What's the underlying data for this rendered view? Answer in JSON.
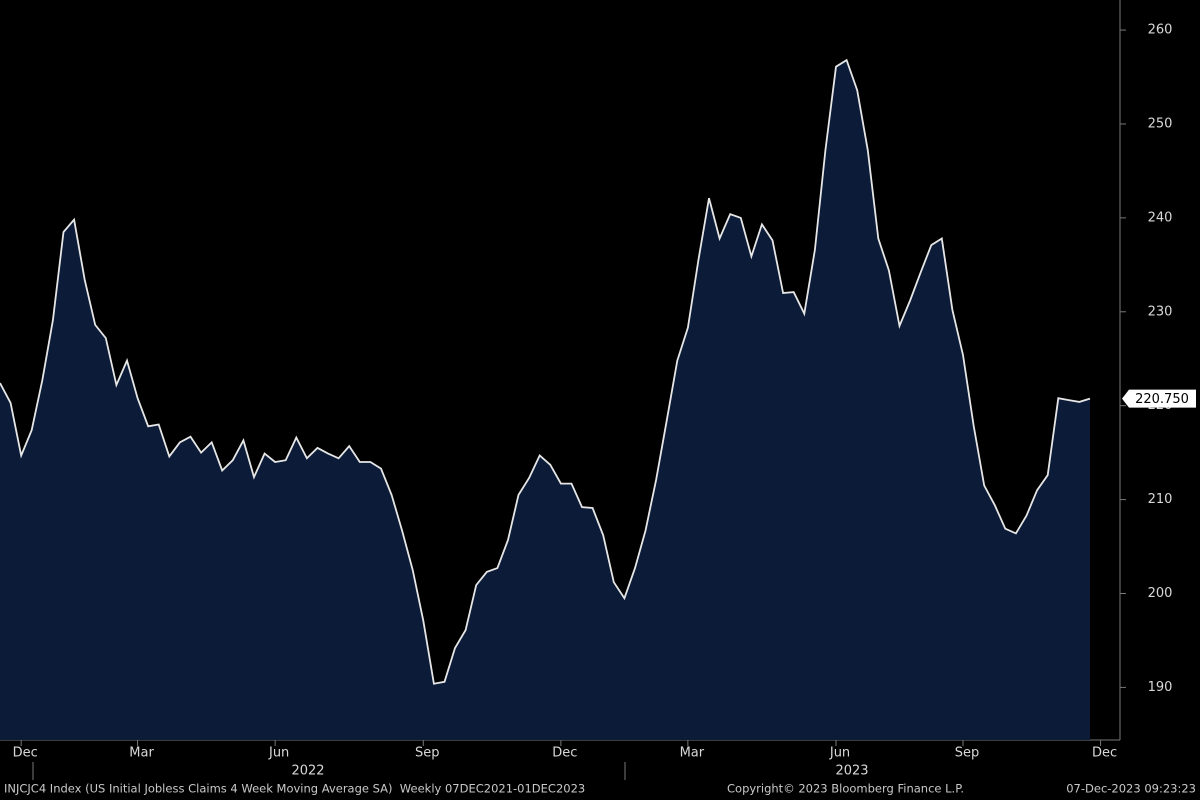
{
  "chart_data": {
    "type": "area",
    "categories": [
      null,
      null,
      "Dec",
      null,
      null,
      null,
      null,
      null,
      null,
      null,
      null,
      null,
      null,
      "Mar",
      null,
      null,
      null,
      null,
      null,
      null,
      null,
      null,
      null,
      null,
      null,
      null,
      "Jun",
      null,
      null,
      null,
      null,
      null,
      null,
      null,
      null,
      null,
      null,
      null,
      null,
      null,
      "Sep",
      null,
      null,
      null,
      null,
      null,
      null,
      null,
      null,
      null,
      null,
      null,
      null,
      "Dec",
      null,
      null,
      null,
      null,
      null,
      null,
      null,
      null,
      null,
      null,
      null,
      "Mar",
      null,
      null,
      null,
      null,
      null,
      null,
      null,
      null,
      null,
      null,
      null,
      null,
      null,
      "Jun",
      null,
      null,
      null,
      null,
      null,
      null,
      null,
      null,
      null,
      null,
      null,
      "Sep",
      null,
      null,
      null,
      null,
      null,
      null,
      null,
      null,
      null,
      null,
      null,
      null,
      "Dec"
    ],
    "values": [
      222.4,
      220.3,
      214.7,
      217.4,
      222.7,
      229.1,
      238.5,
      239.8,
      233.4,
      228.6,
      227.2,
      222.2,
      224.8,
      220.8,
      217.8,
      218.0,
      214.6,
      216.1,
      216.7,
      215.0,
      216.1,
      213.1,
      214.2,
      216.3,
      212.4,
      214.9,
      214.0,
      214.2,
      216.6,
      214.4,
      215.5,
      214.9,
      214.4,
      215.7,
      214.0,
      214.0,
      213.3,
      210.5,
      206.7,
      202.5,
      197.1,
      190.4,
      190.6,
      194.2,
      196.1,
      200.9,
      202.3,
      202.7,
      205.7,
      210.5,
      212.3,
      214.7,
      213.7,
      211.7,
      211.7,
      209.2,
      209.1,
      206.2,
      201.2,
      199.5,
      202.7,
      206.7,
      212.1,
      218.4,
      224.8,
      228.3,
      235.5,
      242.1,
      237.8,
      240.4,
      240.0,
      235.9,
      239.3,
      237.6,
      232.0,
      232.1,
      229.8,
      236.6,
      247.2,
      256.1,
      256.8,
      253.6,
      247.2,
      237.8,
      234.4,
      228.5,
      231.2,
      234.2,
      237.1,
      237.8,
      230.2,
      225.4,
      217.9,
      211.5,
      209.4,
      206.9,
      206.4,
      208.3,
      211.0,
      212.6,
      220.8,
      220.6,
      220.4,
      220.75,
      null
    ],
    "value_labels": [
      null,
      null,
      null,
      null,
      null,
      null,
      null,
      null,
      null,
      null,
      null,
      null,
      null,
      null,
      null,
      null,
      null,
      null,
      null,
      null,
      null,
      null,
      null,
      null,
      null,
      null,
      null,
      null,
      null,
      null,
      null,
      null,
      null,
      null,
      null,
      null,
      null,
      null,
      null,
      null,
      null,
      null,
      null,
      null,
      null,
      null,
      null,
      null,
      null,
      null,
      null,
      null,
      null,
      null,
      null,
      null,
      null,
      null,
      null,
      null,
      null,
      null,
      null,
      null,
      null,
      null,
      null,
      null,
      null,
      null,
      null,
      null,
      null,
      null,
      null,
      null,
      null,
      null,
      null,
      null,
      null,
      null,
      null,
      null,
      null,
      null,
      null,
      null,
      null,
      null,
      null,
      null,
      null,
      null,
      null,
      null,
      null,
      null,
      null,
      null,
      null,
      null,
      null,
      "220.750",
      null
    ],
    "color": "#e6e6e6",
    "fill": "#0c1c38",
    "ylim": [
      184.4,
      263.2
    ],
    "yticks": [
      190,
      200,
      210,
      220,
      230,
      240,
      250,
      260
    ],
    "year_labels": [
      "2022",
      "2023"
    ],
    "footer": {
      "left": "INJCJC4 Index (US Initial Jobless Claims 4 Week Moving Average SA)  Weekly 07DEC2021-01DEC2023",
      "center": "Copyright© 2023 Bloomberg Finance L.P.",
      "right": "07-Dec-2023 09:23:23"
    }
  }
}
